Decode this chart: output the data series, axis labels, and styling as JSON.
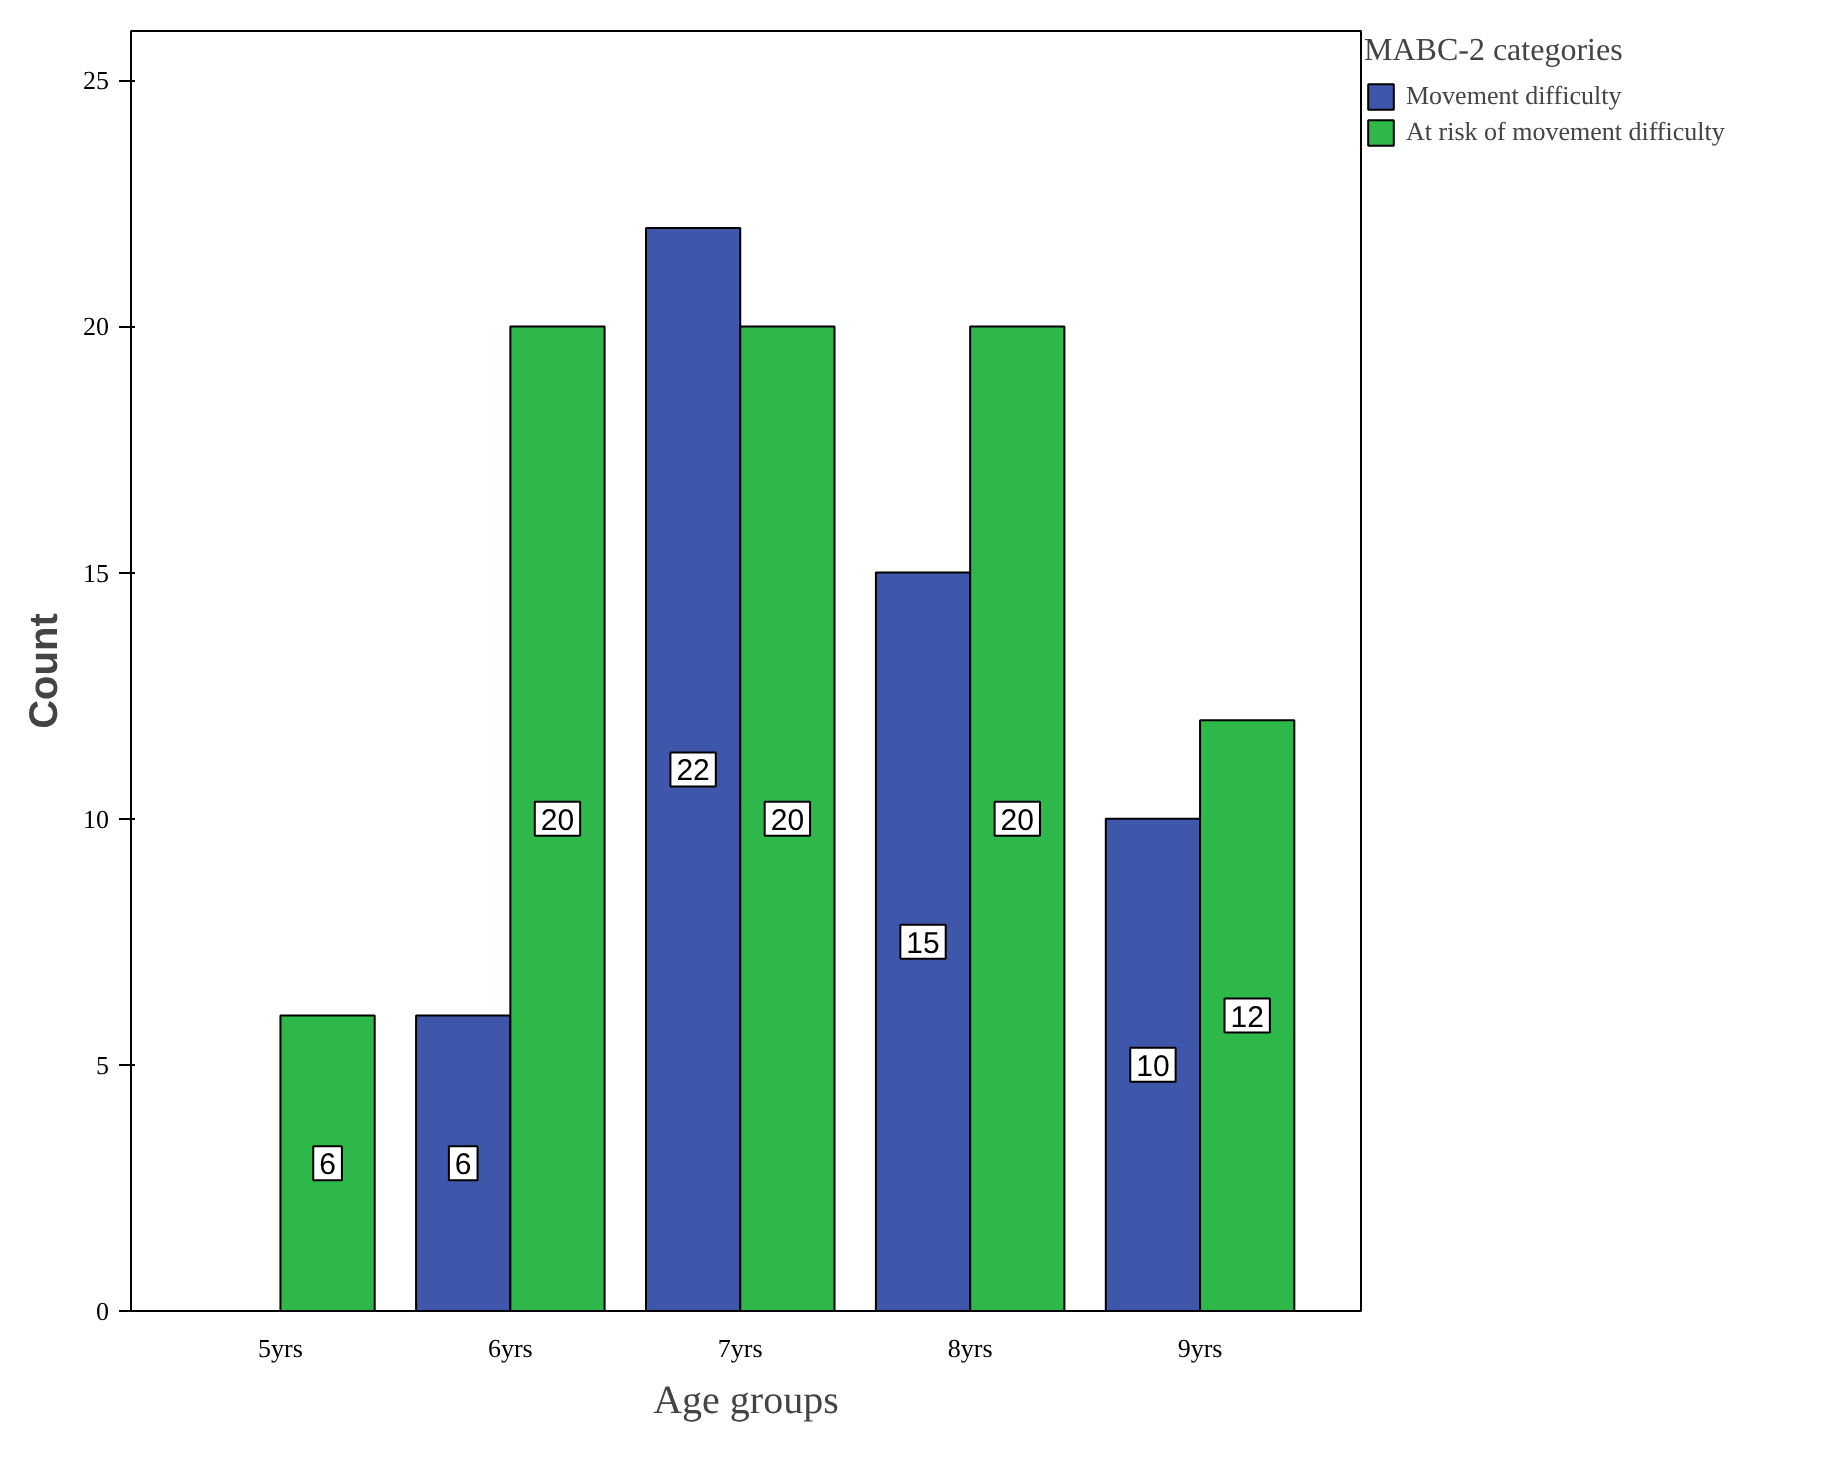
{
  "chart_data": {
    "type": "bar",
    "xlabel": "Age groups",
    "ylabel": "Count",
    "legend_title": "MABC-2 categories",
    "categories": [
      "5yrs",
      "6yrs",
      "7yrs",
      "8yrs",
      "9yrs"
    ],
    "series": [
      {
        "name": "Movement difficulty",
        "color": "#3f57ab",
        "values": [
          null,
          6,
          22,
          15,
          10
        ]
      },
      {
        "name": "At risk of movement difficulty",
        "color": "#2eb84a",
        "values": [
          6,
          20,
          20,
          20,
          12
        ]
      }
    ],
    "ylim": [
      0,
      26
    ],
    "yticks": [
      0,
      5,
      10,
      15,
      20,
      25
    ],
    "data_labels": true,
    "legend": "top right",
    "grid": false
  }
}
